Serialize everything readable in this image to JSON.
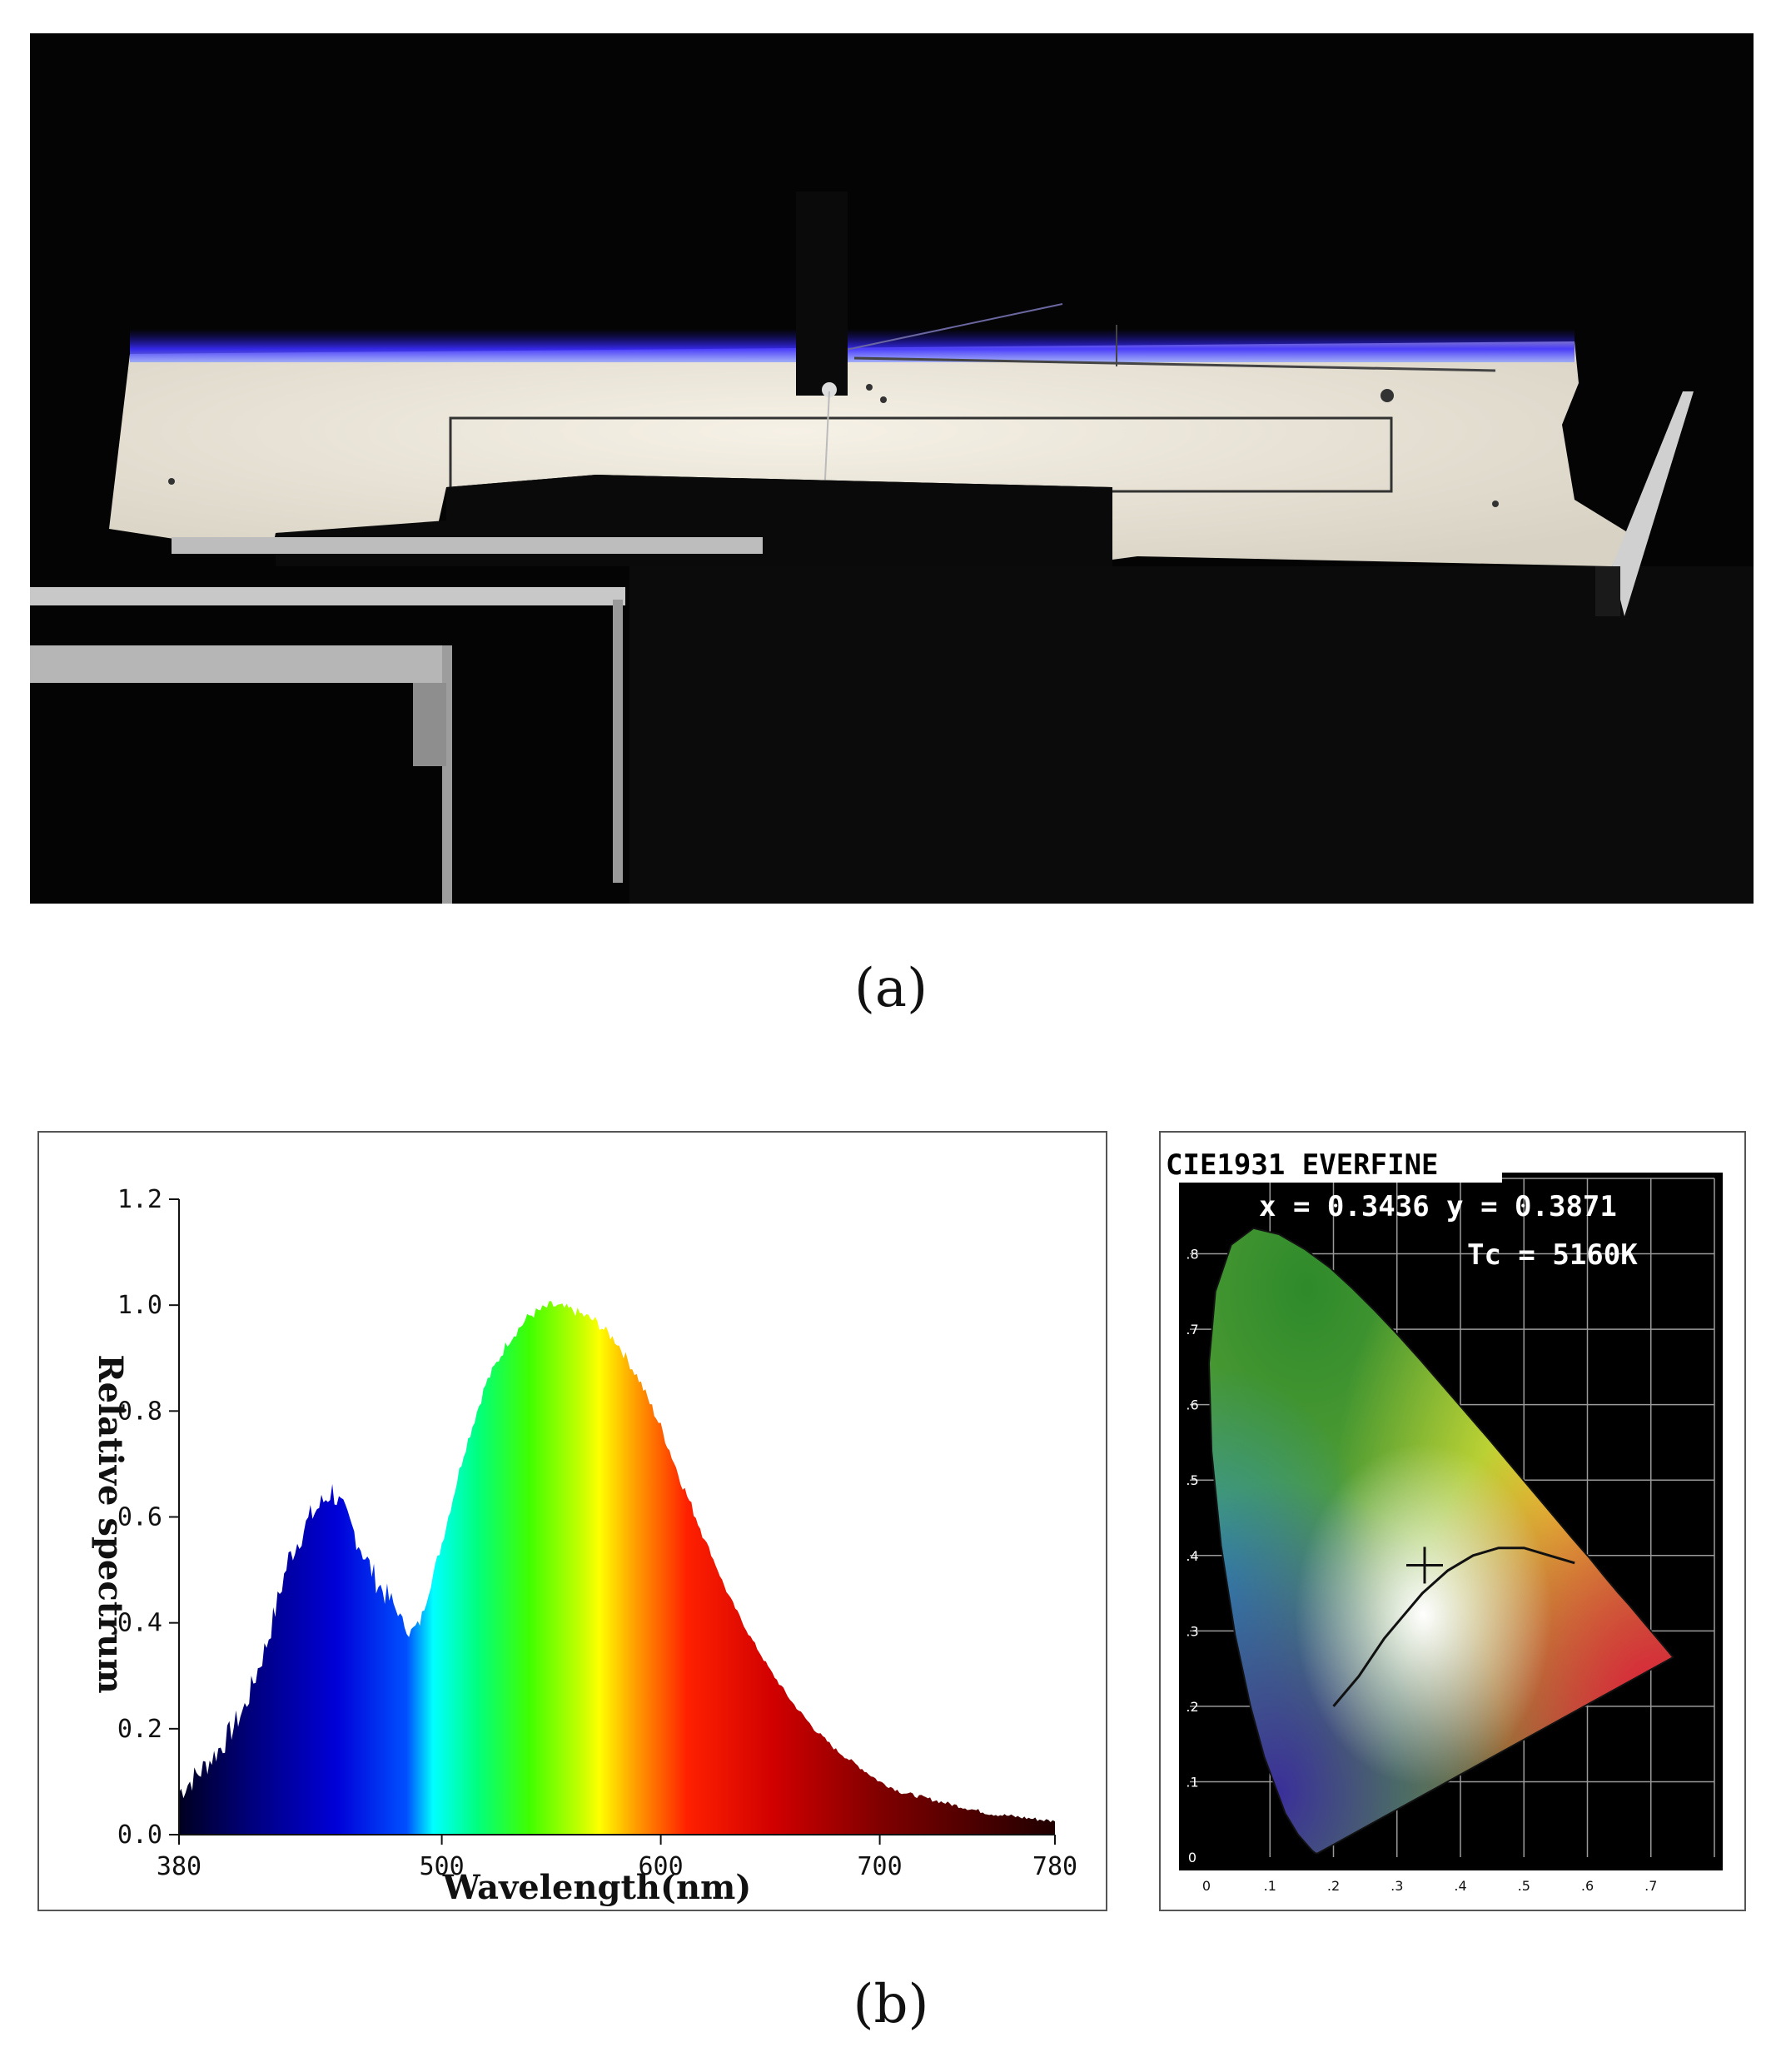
{
  "panel_a": {
    "label": "(a)"
  },
  "panel_b": {
    "label": "(b)"
  },
  "chart_data": [
    {
      "type": "area",
      "xlabel": "Wavelength(nm)",
      "ylabel": "Relative spectrum",
      "xlim": [
        380,
        780
      ],
      "ylim": [
        0,
        1.2
      ],
      "x_ticks": [
        380,
        500,
        600,
        700,
        780
      ],
      "y_ticks": [
        "0.0",
        "0.2",
        "0.4",
        "0.6",
        "0.8",
        "1.0",
        "1.2"
      ],
      "grid": false,
      "x": [
        380,
        390,
        400,
        410,
        420,
        430,
        440,
        450,
        460,
        470,
        480,
        485,
        490,
        500,
        510,
        520,
        530,
        540,
        550,
        560,
        570,
        580,
        590,
        600,
        610,
        620,
        630,
        640,
        650,
        660,
        670,
        680,
        690,
        700,
        710,
        720,
        730,
        740,
        750,
        760,
        770,
        780
      ],
      "y": [
        0.08,
        0.12,
        0.17,
        0.24,
        0.36,
        0.52,
        0.6,
        0.65,
        0.57,
        0.48,
        0.42,
        0.38,
        0.4,
        0.55,
        0.72,
        0.85,
        0.93,
        0.98,
        1.0,
        0.99,
        0.97,
        0.93,
        0.86,
        0.77,
        0.66,
        0.56,
        0.46,
        0.38,
        0.31,
        0.25,
        0.2,
        0.16,
        0.13,
        0.1,
        0.08,
        0.07,
        0.06,
        0.05,
        0.04,
        0.035,
        0.03,
        0.025
      ]
    },
    {
      "type": "scatter",
      "title": "CIE1931 EVERFINE",
      "readout_xy": "x = 0.3436 y = 0.3871",
      "readout_tc": "Tc = 5160K",
      "point": {
        "x": 0.3436,
        "y": 0.3871
      },
      "xlim": [
        0,
        0.8
      ],
      "ylim": [
        0,
        0.9
      ]
    }
  ]
}
